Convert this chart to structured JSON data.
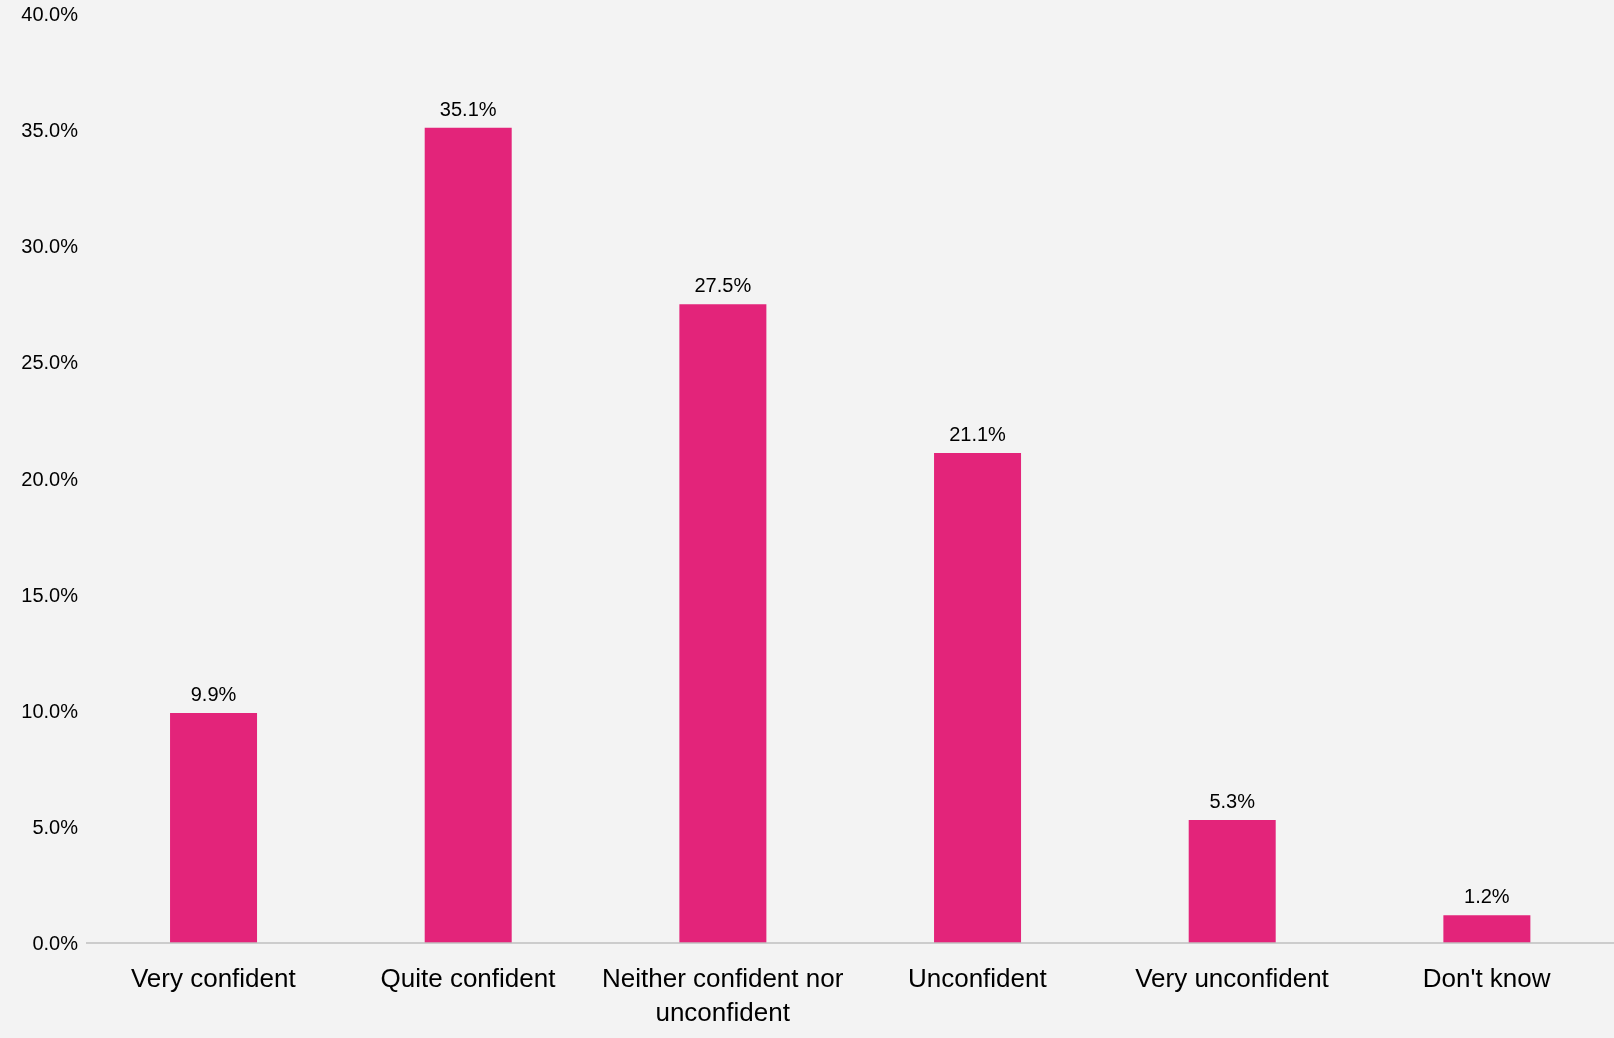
{
  "chart_data": {
    "type": "bar",
    "categories": [
      "Very confident",
      "Quite confident",
      "Neither confident nor unconfident",
      "Unconfident",
      "Very unconfident",
      "Don't know"
    ],
    "values": [
      9.9,
      35.1,
      27.5,
      21.1,
      5.3,
      1.2
    ],
    "value_labels": [
      "9.9%",
      "35.1%",
      "27.5%",
      "21.1%",
      "5.3%",
      "1.2%"
    ],
    "color": "#e3247a",
    "ylim": [
      0,
      40
    ],
    "yticks": [
      {
        "value": 0,
        "label": "0.0%"
      },
      {
        "value": 5,
        "label": "5.0%"
      },
      {
        "value": 10,
        "label": "10.0%"
      },
      {
        "value": 15,
        "label": "15.0%"
      },
      {
        "value": 20,
        "label": "20.0%"
      },
      {
        "value": 25,
        "label": "25.0%"
      },
      {
        "value": 30,
        "label": "30.0%"
      },
      {
        "value": 35,
        "label": "35.0%"
      },
      {
        "value": 40,
        "label": "40.0%"
      }
    ],
    "grid": false,
    "legend": false
  }
}
